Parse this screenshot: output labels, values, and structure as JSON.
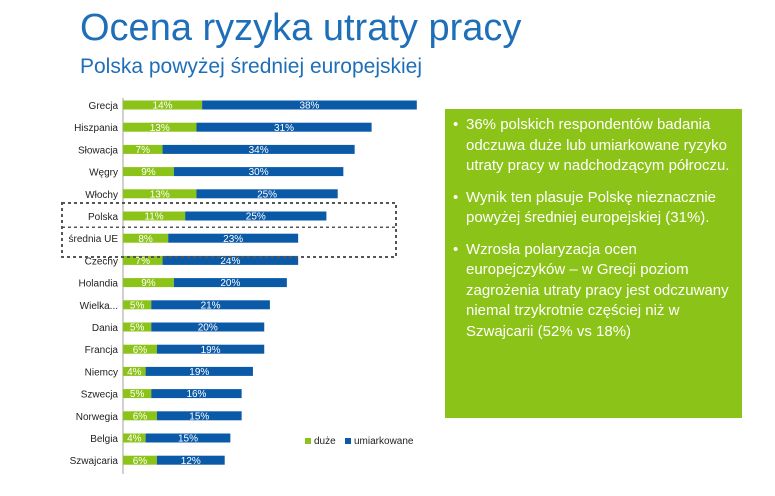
{
  "header": {
    "title": "Ocena ryzyka utraty pracy",
    "subtitle": "Polska powyżej średniej europejskiej"
  },
  "notes": [
    "36% polskich respondentów badania odczuwa duże lub umiarkowane ryzyko utraty pracy w nadchodzącym półroczu.",
    "Wynik ten plasuje Polskę nieznacznie powyżej średniej europejskiej (31%).",
    "Wzrosła polaryzacja ocen europejczyków – w Grecji poziom zagrożenia utraty pracy jest odczuwany niemal trzykrotnie częściej niż w Szwajcarii (52% vs 18%)"
  ],
  "colors": {
    "duze": "#8cc318",
    "umiarkowane": "#0a5aa8",
    "title": "#1f6fb8",
    "highlight_border": "#555555"
  },
  "chart_data": {
    "type": "bar",
    "orientation": "horizontal",
    "stacked": true,
    "categories": [
      "Grecja",
      "Hiszpania",
      "Słowacja",
      "Węgry",
      "Włochy",
      "Polska",
      "średnia UE",
      "Czechy",
      "Holandia",
      "Wielka...",
      "Dania",
      "Francja",
      "Niemcy",
      "Szwecja",
      "Norwegia",
      "Belgia",
      "Szwajcaria"
    ],
    "series": [
      {
        "name": "duże",
        "values": [
          14,
          13,
          7,
          9,
          13,
          11,
          8,
          7,
          9,
          5,
          5,
          6,
          4,
          5,
          6,
          4,
          6
        ]
      },
      {
        "name": "umiarkowane",
        "values": [
          38,
          31,
          34,
          30,
          25,
          25,
          23,
          24,
          20,
          21,
          20,
          19,
          19,
          16,
          15,
          15,
          12
        ]
      }
    ],
    "value_suffix": "%",
    "highlighted_categories": [
      "Polska",
      "średnia UE"
    ],
    "legend_position": "bottom-right",
    "grid": false
  }
}
